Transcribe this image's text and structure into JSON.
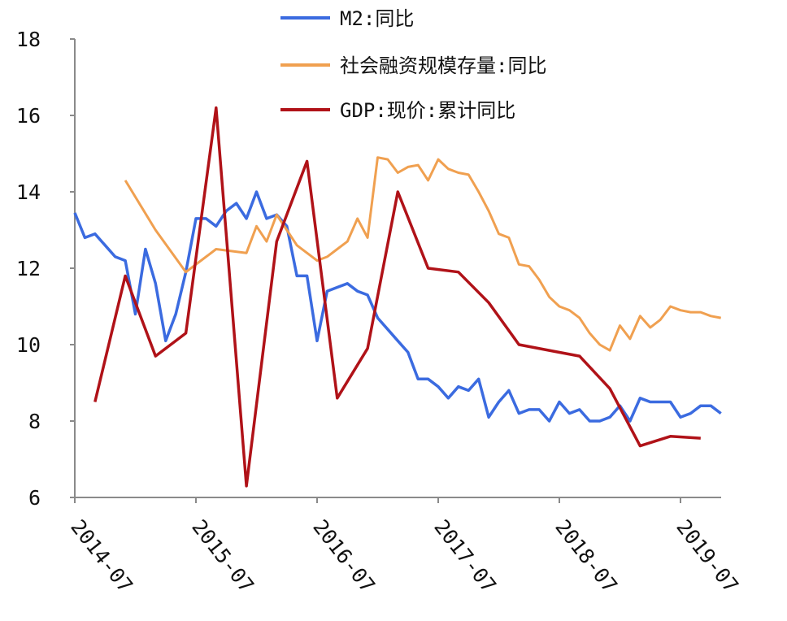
{
  "chart_data": {
    "type": "line",
    "title": "",
    "xlabel": "",
    "ylabel": "",
    "ylim": [
      6,
      18
    ],
    "yticks": [
      "6",
      "8",
      "10",
      "12",
      "14",
      "16",
      "18"
    ],
    "xticks": [
      "2014-07",
      "2015-07",
      "2016-07",
      "2017-07",
      "2018-07",
      "2019-07"
    ],
    "grid": false,
    "legend_position": "top",
    "x": [
      "2014-07",
      "2014-08",
      "2014-09",
      "2014-10",
      "2014-11",
      "2014-12",
      "2015-01",
      "2015-02",
      "2015-03",
      "2015-04",
      "2015-05",
      "2015-06",
      "2015-07",
      "2015-08",
      "2015-09",
      "2015-10",
      "2015-11",
      "2015-12",
      "2016-01",
      "2016-02",
      "2016-03",
      "2016-04",
      "2016-05",
      "2016-06",
      "2016-07",
      "2016-08",
      "2016-09",
      "2016-10",
      "2016-11",
      "2016-12",
      "2017-01",
      "2017-02",
      "2017-03",
      "2017-04",
      "2017-05",
      "2017-06",
      "2017-07",
      "2017-08",
      "2017-09",
      "2017-10",
      "2017-11",
      "2017-12",
      "2018-01",
      "2018-02",
      "2018-03",
      "2018-04",
      "2018-05",
      "2018-06",
      "2018-07",
      "2018-08",
      "2018-09",
      "2018-10",
      "2018-11",
      "2018-12",
      "2019-01",
      "2019-02",
      "2019-03",
      "2019-04",
      "2019-05",
      "2019-06",
      "2019-07",
      "2019-08",
      "2019-09",
      "2019-10",
      "2019-11"
    ],
    "series": [
      {
        "name": "M2:同比",
        "color": "#3b6be0",
        "values": [
          13.45,
          12.8,
          12.9,
          12.6,
          12.3,
          12.2,
          10.8,
          12.5,
          11.6,
          10.1,
          10.8,
          11.9,
          13.3,
          13.3,
          13.1,
          13.5,
          13.7,
          13.3,
          14.0,
          13.3,
          13.4,
          13.1,
          11.8,
          11.8,
          10.1,
          11.4,
          11.5,
          11.6,
          11.4,
          11.3,
          10.7,
          10.4,
          10.1,
          9.8,
          9.1,
          9.1,
          8.9,
          8.6,
          8.9,
          8.8,
          9.1,
          8.1,
          8.5,
          8.8,
          8.2,
          8.3,
          8.3,
          8.0,
          8.5,
          8.2,
          8.3,
          8.0,
          8.0,
          8.1,
          8.4,
          8.0,
          8.6,
          8.5,
          8.5,
          8.5,
          8.1,
          8.2,
          8.4,
          8.4,
          8.2
        ]
      },
      {
        "name": "社会融资规模存量:同比",
        "color": "#f0a050",
        "values": [
          null,
          null,
          null,
          null,
          null,
          14.3,
          null,
          null,
          13.0,
          null,
          null,
          11.9,
          null,
          null,
          12.5,
          null,
          null,
          12.4,
          13.1,
          12.7,
          13.4,
          13.0,
          12.6,
          12.4,
          12.2,
          12.3,
          12.5,
          12.7,
          13.3,
          12.8,
          14.9,
          14.85,
          14.5,
          14.65,
          14.7,
          14.3,
          14.85,
          14.6,
          14.5,
          14.45,
          14.0,
          13.5,
          12.9,
          12.8,
          12.1,
          12.05,
          11.7,
          11.25,
          11.0,
          10.9,
          10.7,
          10.3,
          10.0,
          9.85,
          10.5,
          10.15,
          10.75,
          10.45,
          10.65,
          11.0,
          10.9,
          10.85,
          10.85,
          10.75,
          10.7
        ]
      },
      {
        "name": "GDP:现价:累计同比",
        "color": "#b01218",
        "values": [
          null,
          null,
          8.5,
          null,
          null,
          11.8,
          null,
          null,
          9.7,
          null,
          null,
          10.3,
          null,
          null,
          16.2,
          null,
          null,
          6.3,
          null,
          null,
          12.7,
          null,
          null,
          14.8,
          null,
          null,
          8.6,
          null,
          null,
          9.9,
          null,
          null,
          14.0,
          null,
          null,
          12.0,
          null,
          null,
          11.9,
          null,
          null,
          11.1,
          null,
          null,
          10.0,
          null,
          null,
          9.85,
          null,
          null,
          9.7,
          null,
          null,
          8.85,
          null,
          null,
          7.35,
          null,
          null,
          7.6,
          null,
          null,
          7.55,
          null,
          null
        ]
      }
    ]
  }
}
